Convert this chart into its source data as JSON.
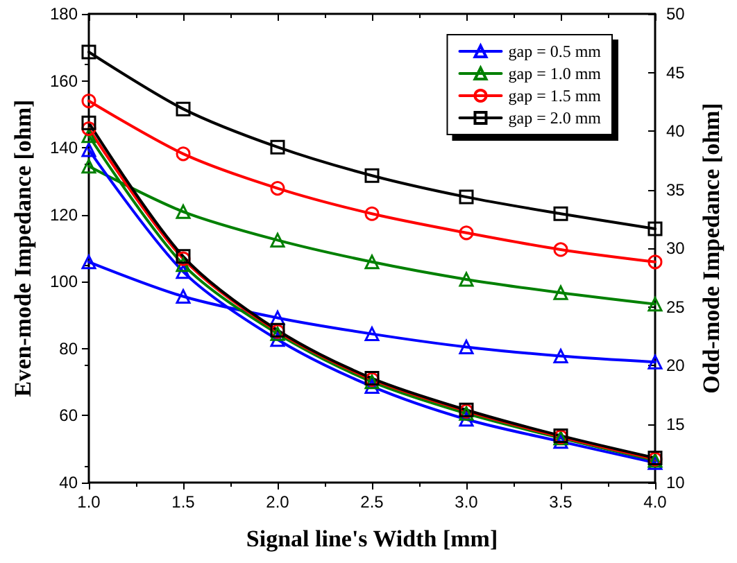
{
  "chart_data": {
    "type": "line",
    "xlabel": "Signal line's Width [mm]",
    "ylabel": "Even-mode Impedance [ohm]",
    "y2label": "Odd-mode Impedance [ohm]",
    "x": [
      1.0,
      1.5,
      2.0,
      2.5,
      3.0,
      3.5,
      4.0
    ],
    "series": [
      {
        "name": "gap = 0.5 mm",
        "color": "#0000ff",
        "marker": "triangle",
        "values": [
          105.9,
          95.6,
          89.2,
          84.4,
          80.5,
          77.8,
          76.0
        ]
      },
      {
        "name": "gap = 1.0 mm",
        "color": "#008000",
        "marker": "triangle",
        "values": [
          134.5,
          120.9,
          112.4,
          105.9,
          100.7,
          96.7,
          93.3
        ]
      },
      {
        "name": "gap = 1.5 mm",
        "color": "#ff0000",
        "marker": "circle",
        "values": [
          154.0,
          138.2,
          127.9,
          120.3,
          114.6,
          109.6,
          105.9
        ]
      },
      {
        "name": "gap = 2.0 mm",
        "color": "#000000",
        "marker": "square",
        "values": [
          168.6,
          151.6,
          140.2,
          131.7,
          125.3,
          120.3,
          115.8
        ]
      },
      {
        "color": "#0000ff",
        "marker": "triangle",
        "axis": "y2",
        "values": [
          38.4,
          28.0,
          22.2,
          18.2,
          15.4,
          13.5,
          11.7
        ]
      },
      {
        "color": "#008000",
        "marker": "triangle",
        "axis": "y2",
        "values": [
          39.6,
          28.6,
          22.7,
          18.6,
          15.9,
          13.8,
          11.9
        ]
      },
      {
        "color": "#ff0000",
        "marker": "circle",
        "axis": "y2",
        "values": [
          40.2,
          29.1,
          22.9,
          18.8,
          16.1,
          13.9,
          12.0
        ]
      },
      {
        "color": "#000000",
        "marker": "square",
        "axis": "y2",
        "values": [
          40.7,
          29.3,
          23.0,
          18.9,
          16.2,
          14.0,
          12.1
        ]
      }
    ],
    "xlim": [
      1.0,
      4.0
    ],
    "xticks": [
      {
        "value": 1.0,
        "label": "1.0"
      },
      {
        "value": 1.5,
        "label": "1.5"
      },
      {
        "value": 2.0,
        "label": "2.0"
      },
      {
        "value": 2.5,
        "label": "2.5"
      },
      {
        "value": 3.0,
        "label": "3.0"
      },
      {
        "value": 3.5,
        "label": "3.5"
      },
      {
        "value": 4.0,
        "label": "4.0"
      }
    ],
    "ylim": [
      40,
      180
    ],
    "yticks": [
      40,
      60,
      80,
      100,
      120,
      140,
      160,
      180
    ],
    "y2lim": [
      10,
      50
    ],
    "y2ticks": [
      10,
      15,
      20,
      25,
      30,
      35,
      40,
      45,
      50
    ],
    "grid": false,
    "legend": "top right",
    "line_style": "solid"
  }
}
